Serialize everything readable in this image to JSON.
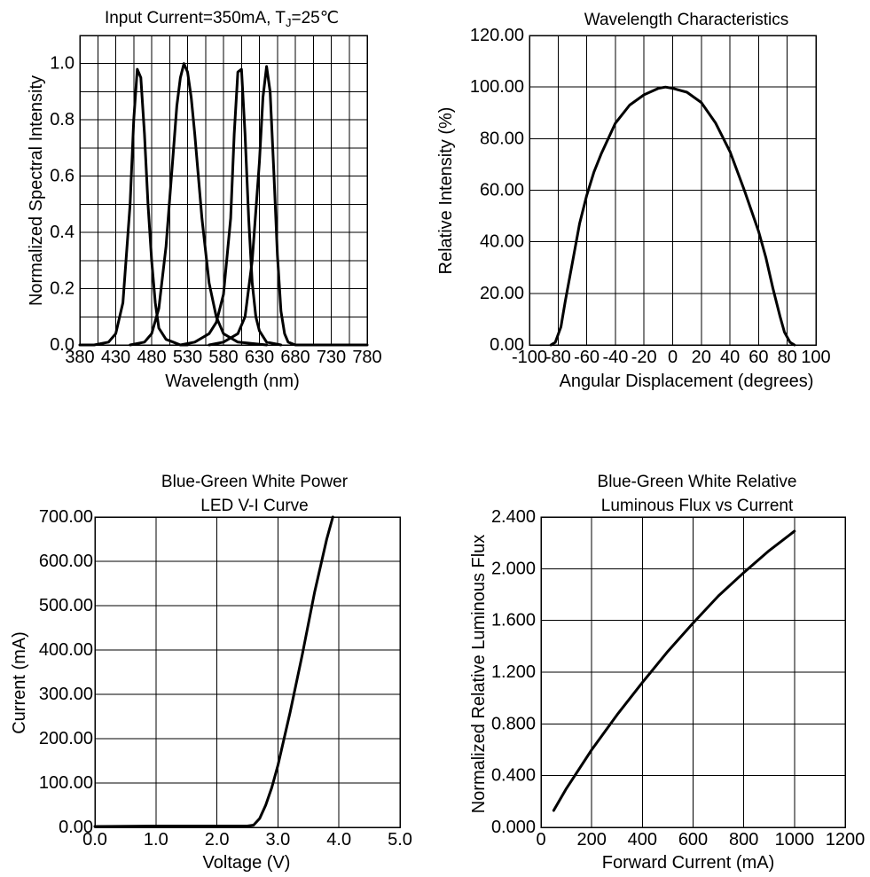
{
  "chart_data": [
    {
      "type": "line",
      "title": "Input Current=350mA, T",
      "title_subscript": "J",
      "title_suffix": "=25℃",
      "xlabel": "Wavelength (nm)",
      "ylabel": "Normalized Spectral Intensity",
      "xlim": [
        380,
        780
      ],
      "ylim": [
        0,
        1.1
      ],
      "x_ticks": [
        380,
        430,
        480,
        530,
        580,
        630,
        680,
        730,
        780
      ],
      "x_tick_labels": [
        "380",
        "430",
        "480",
        "530",
        "580",
        "630",
        "680",
        "730",
        "780"
      ],
      "y_ticks": [
        0,
        0.2,
        0.4,
        0.6,
        0.8,
        1.0
      ],
      "y_tick_labels": [
        "0.0",
        "0.2",
        "0.4",
        "0.6",
        "0.8",
        "1.0"
      ],
      "grid": true,
      "series": [
        {
          "x": [
            380,
            400,
            420,
            430,
            440,
            450,
            455,
            460,
            465,
            470,
            475,
            480,
            485,
            490,
            500,
            510,
            520,
            530
          ],
          "y": [
            0,
            0,
            0.01,
            0.04,
            0.15,
            0.5,
            0.8,
            0.98,
            0.95,
            0.75,
            0.5,
            0.3,
            0.15,
            0.06,
            0.02,
            0.01,
            0,
            0
          ]
        },
        {
          "x": [
            450,
            470,
            480,
            490,
            500,
            510,
            515,
            520,
            525,
            530,
            535,
            540,
            550,
            560,
            570,
            580,
            600,
            640
          ],
          "y": [
            0,
            0.01,
            0.04,
            0.13,
            0.35,
            0.68,
            0.85,
            0.95,
            1.0,
            0.97,
            0.88,
            0.75,
            0.45,
            0.22,
            0.1,
            0.04,
            0.01,
            0
          ]
        },
        {
          "x": [
            520,
            540,
            560,
            570,
            580,
            590,
            595,
            600,
            605,
            610,
            615,
            620,
            625,
            630,
            640,
            660
          ],
          "y": [
            0,
            0.01,
            0.04,
            0.08,
            0.18,
            0.45,
            0.75,
            0.97,
            0.98,
            0.75,
            0.45,
            0.22,
            0.1,
            0.05,
            0.01,
            0
          ]
        },
        {
          "x": [
            560,
            580,
            600,
            610,
            620,
            630,
            635,
            640,
            645,
            650,
            655,
            660,
            665,
            670,
            680,
            700,
            740,
            780
          ],
          "y": [
            0,
            0.01,
            0.04,
            0.1,
            0.3,
            0.65,
            0.88,
            0.99,
            0.9,
            0.62,
            0.32,
            0.12,
            0.04,
            0.01,
            0,
            0,
            0,
            0
          ]
        }
      ]
    },
    {
      "type": "line",
      "title": "Wavelength Characteristics",
      "xlabel": "Angular Displacement (degrees)",
      "ylabel": "Relative Intensity (%)",
      "xlim": [
        -100,
        100
      ],
      "ylim": [
        0,
        120
      ],
      "x_ticks": [
        -100,
        -80,
        -60,
        -40,
        -20,
        0,
        20,
        40,
        60,
        80,
        100
      ],
      "x_tick_labels": [
        "-100",
        "-80",
        "-60",
        "-40",
        "-20",
        "0",
        "20",
        "40",
        "60",
        "80",
        "100"
      ],
      "y_ticks": [
        0,
        20,
        40,
        60,
        80,
        100,
        120
      ],
      "y_tick_labels": [
        "0.00",
        "20.00",
        "40.00",
        "60.00",
        "80.00",
        "100.00",
        "120.00"
      ],
      "grid": true,
      "series": [
        {
          "x": [
            -85,
            -82,
            -78,
            -75,
            -70,
            -65,
            -60,
            -55,
            -50,
            -40,
            -30,
            -20,
            -10,
            -5,
            0,
            10,
            20,
            30,
            40,
            50,
            60,
            65,
            70,
            75,
            78,
            82,
            85
          ],
          "y": [
            0,
            1,
            7,
            17,
            32,
            47,
            58,
            67,
            74,
            86,
            93,
            97,
            99.5,
            100,
            99.5,
            98,
            94,
            86,
            75,
            60,
            44,
            34,
            22,
            11,
            5,
            1,
            0
          ]
        }
      ]
    },
    {
      "type": "line",
      "title_lines": [
        "Blue-Green White Power",
        "LED V-I Curve"
      ],
      "xlabel": "Voltage (V)",
      "ylabel": "Current (mA)",
      "xlim": [
        0,
        5
      ],
      "ylim": [
        0,
        700
      ],
      "x_ticks": [
        0,
        1,
        2,
        3,
        4,
        5
      ],
      "x_tick_labels": [
        "0.0",
        "1.0",
        "2.0",
        "3.0",
        "4.0",
        "5.0"
      ],
      "y_ticks": [
        0,
        100,
        200,
        300,
        400,
        500,
        600,
        700
      ],
      "y_tick_labels": [
        "0.00",
        "100.00",
        "200.00",
        "300.00",
        "400.00",
        "500.00",
        "600.00",
        "700.00"
      ],
      "grid": true,
      "series": [
        {
          "x": [
            0,
            1,
            2,
            2.5,
            2.6,
            2.7,
            2.8,
            2.9,
            3.0,
            3.2,
            3.4,
            3.6,
            3.8,
            3.9
          ],
          "y": [
            2,
            3,
            3,
            3,
            5,
            20,
            50,
            90,
            140,
            260,
            390,
            530,
            650,
            700
          ]
        }
      ]
    },
    {
      "type": "line",
      "title_lines": [
        "Blue-Green White Relative",
        "Luminous Flux vs Current"
      ],
      "xlabel": "Forward Current (mA)",
      "ylabel": "Normalized Relative Luminous Flux",
      "xlim": [
        0,
        1200
      ],
      "ylim": [
        0,
        2.4
      ],
      "x_ticks": [
        0,
        200,
        400,
        600,
        800,
        1000,
        1200
      ],
      "x_tick_labels": [
        "0",
        "200",
        "400",
        "600",
        "800",
        "1000",
        "1200"
      ],
      "y_ticks": [
        0,
        0.4,
        0.8,
        1.2,
        1.6,
        2.0,
        2.4
      ],
      "y_tick_labels": [
        "0.000",
        "0.400",
        "0.800",
        "1.200",
        "1.600",
        "2.000",
        "2.400"
      ],
      "grid": true,
      "series": [
        {
          "x": [
            50,
            100,
            200,
            300,
            400,
            500,
            600,
            700,
            800,
            900,
            1000
          ],
          "y": [
            0.13,
            0.3,
            0.6,
            0.87,
            1.12,
            1.36,
            1.58,
            1.79,
            1.97,
            2.14,
            2.29
          ]
        }
      ]
    }
  ]
}
